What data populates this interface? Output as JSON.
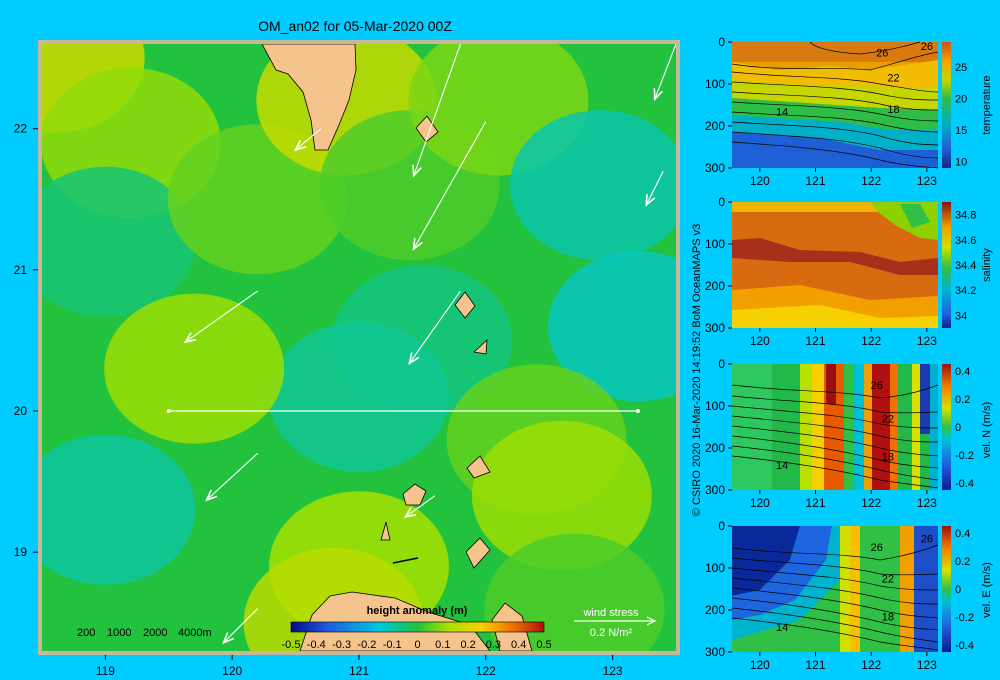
{
  "colors": {
    "background": "#00ccff",
    "land": "#f5c38c",
    "frame": "#c8b89a",
    "section_line": "#ffffff"
  },
  "chart_data": [
    {
      "type": "heatmap",
      "title": "OM_an02 for 05-Mar-2020 00Z",
      "xlim": [
        118.5,
        123.5
      ],
      "ylim": [
        18.3,
        22.6
      ],
      "x_ticks": [
        "119",
        "120",
        "121",
        "122",
        "123"
      ],
      "y_ticks": [
        "22",
        "21",
        "20",
        "19"
      ],
      "colorbar": {
        "label": "height anomaly (m)",
        "ticks": [
          "-0.5",
          "-0.4",
          "-0.3",
          "-0.2",
          "-0.1",
          "0",
          "0.1",
          "0.2",
          "0.3",
          "0.4",
          "0.5"
        ],
        "range": [
          -0.5,
          0.5
        ]
      },
      "depth_legend": [
        "200",
        "1000",
        "2000",
        "4000m"
      ],
      "wind_legend": {
        "label": "wind stress",
        "value": "0.2 N/m²"
      },
      "section_line": {
        "lat": 20.0,
        "lon_start": 119.5,
        "lon_end": 123.2
      },
      "field_regions": [
        {
          "lon": 118.6,
          "lat": 22.5,
          "value": 0.18
        },
        {
          "lon": 119.2,
          "lat": 21.9,
          "value": 0.1
        },
        {
          "lon": 119.0,
          "lat": 21.2,
          "value": -0.05
        },
        {
          "lon": 120.2,
          "lat": 21.5,
          "value": 0.06
        },
        {
          "lon": 120.9,
          "lat": 22.2,
          "value": 0.17
        },
        {
          "lon": 121.4,
          "lat": 21.6,
          "value": 0.04
        },
        {
          "lon": 122.1,
          "lat": 22.2,
          "value": 0.08
        },
        {
          "lon": 122.9,
          "lat": 21.6,
          "value": -0.1
        },
        {
          "lon": 123.2,
          "lat": 20.6,
          "value": -0.12
        },
        {
          "lon": 121.5,
          "lat": 20.5,
          "value": -0.06
        },
        {
          "lon": 121.0,
          "lat": 20.1,
          "value": -0.08
        },
        {
          "lon": 119.7,
          "lat": 20.3,
          "value": 0.11
        },
        {
          "lon": 122.4,
          "lat": 19.8,
          "value": 0.06
        },
        {
          "lon": 122.6,
          "lat": 19.4,
          "value": 0.11
        },
        {
          "lon": 119.0,
          "lat": 19.3,
          "value": -0.09
        },
        {
          "lon": 121.0,
          "lat": 18.9,
          "value": 0.12
        },
        {
          "lon": 120.8,
          "lat": 18.5,
          "value": 0.15
        },
        {
          "lon": 122.7,
          "lat": 18.6,
          "value": 0.04
        }
      ],
      "wind_vectors": [
        {
          "lon": 121.8,
          "lat": 22.6,
          "u": -0.55,
          "v": -1.55
        },
        {
          "lon": 123.5,
          "lat": 22.6,
          "u": -0.25,
          "v": -0.65
        },
        {
          "lon": 120.7,
          "lat": 22.0,
          "u": -0.3,
          "v": -0.25
        },
        {
          "lon": 122.0,
          "lat": 22.05,
          "u": -0.85,
          "v": -1.5
        },
        {
          "lon": 123.4,
          "lat": 21.7,
          "u": -0.2,
          "v": -0.4
        },
        {
          "lon": 120.2,
          "lat": 20.85,
          "u": -0.85,
          "v": -0.6
        },
        {
          "lon": 121.8,
          "lat": 20.85,
          "u": -0.6,
          "v": -0.85
        },
        {
          "lon": 120.2,
          "lat": 19.7,
          "u": -0.6,
          "v": -0.55
        },
        {
          "lon": 121.6,
          "lat": 19.4,
          "u": -0.35,
          "v": -0.25
        },
        {
          "lon": 120.2,
          "lat": 18.6,
          "u": -0.4,
          "v": -0.4
        }
      ]
    },
    {
      "type": "heatmap",
      "variable": "temperature",
      "xlim": [
        119.5,
        123.2
      ],
      "ylim": [
        0,
        300
      ],
      "x_ticks": [
        "120",
        "121",
        "122",
        "123"
      ],
      "y_ticks": [
        "0",
        "100",
        "200",
        "300"
      ],
      "colorbar": {
        "label": "temperature",
        "ticks": [
          "25",
          "20",
          "15",
          "10"
        ],
        "range": [
          9,
          29
        ]
      },
      "contour_labels": [
        {
          "text": "26",
          "x": 122.2,
          "depth": 25
        },
        {
          "text": "26",
          "x": 123.0,
          "depth": 10
        },
        {
          "text": "22",
          "x": 122.4,
          "depth": 85
        },
        {
          "text": "18",
          "x": 122.4,
          "depth": 160
        },
        {
          "text": "14",
          "x": 120.4,
          "depth": 165
        }
      ]
    },
    {
      "type": "heatmap",
      "variable": "salinity",
      "xlim": [
        119.5,
        123.2
      ],
      "ylim": [
        0,
        300
      ],
      "x_ticks": [
        "120",
        "121",
        "122",
        "123"
      ],
      "y_ticks": [
        "0",
        "100",
        "200",
        "300"
      ],
      "colorbar": {
        "label": "salinity",
        "ticks": [
          "34.8",
          "34.6",
          "34.4",
          "34.2",
          "34"
        ],
        "range": [
          33.9,
          34.9
        ]
      }
    },
    {
      "type": "heatmap",
      "variable": "vel. N (m/s)",
      "xlim": [
        119.5,
        123.2
      ],
      "ylim": [
        0,
        300
      ],
      "x_ticks": [
        "120",
        "121",
        "122",
        "123"
      ],
      "y_ticks": [
        "0",
        "100",
        "200",
        "300"
      ],
      "colorbar": {
        "label": "vel. N  (m/s)",
        "ticks": [
          "0.4",
          "0.2",
          "0",
          "-0.2",
          "-0.4"
        ],
        "range": [
          -0.45,
          0.45
        ]
      },
      "contour_labels": [
        {
          "text": "26",
          "x": 122.1,
          "depth": 50
        },
        {
          "text": "22",
          "x": 122.3,
          "depth": 130
        },
        {
          "text": "18",
          "x": 122.3,
          "depth": 220
        },
        {
          "text": "14",
          "x": 120.4,
          "depth": 240
        }
      ]
    },
    {
      "type": "heatmap",
      "variable": "vel. E (m/s)",
      "xlim": [
        119.5,
        123.2
      ],
      "ylim": [
        0,
        300
      ],
      "x_ticks": [
        "120",
        "121",
        "122",
        "123"
      ],
      "y_ticks": [
        "0",
        "100",
        "200",
        "300"
      ],
      "colorbar": {
        "label": "vel. E  (m/s)",
        "ticks": [
          "0.4",
          "0.2",
          "0",
          "-0.2",
          "-0.4"
        ],
        "range": [
          -0.45,
          0.45
        ]
      },
      "contour_labels": [
        {
          "text": "26",
          "x": 122.1,
          "depth": 50
        },
        {
          "text": "26",
          "x": 123.0,
          "depth": 30
        },
        {
          "text": "22",
          "x": 122.3,
          "depth": 125
        },
        {
          "text": "18",
          "x": 122.3,
          "depth": 215
        },
        {
          "text": "14",
          "x": 120.4,
          "depth": 240
        }
      ]
    }
  ],
  "credit": "© CSIRO 2020   16-Mar-2020 14:19:52 BoM OceanMAPS v3"
}
